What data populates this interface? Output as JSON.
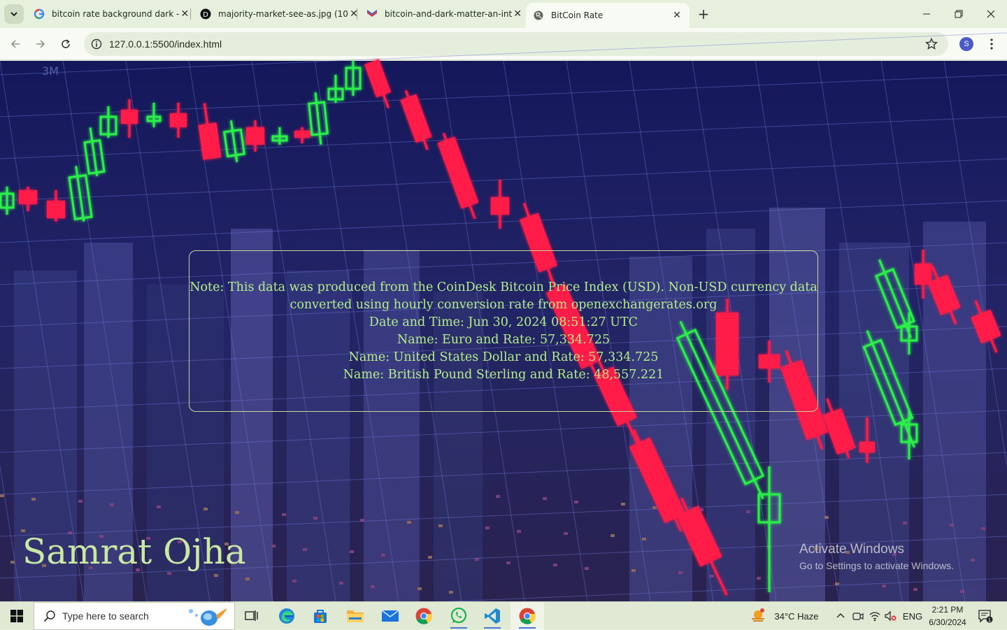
{
  "browser": {
    "tabs": [
      {
        "title": "bitcoin rate background dark - ",
        "favicon": "google-g-icon",
        "active": false
      },
      {
        "title": "majority-market-see-as.jpg (10",
        "favicon": "dark-d-icon",
        "active": false
      },
      {
        "title": "bitcoin-and-dark-matter-an-int",
        "favicon": "site-flag-icon",
        "active": false
      },
      {
        "title": "BitCoin Rate",
        "favicon": "globe-icon",
        "active": true
      }
    ],
    "url": "127.0.0.1:5500/index.html",
    "profile_initial": "S"
  },
  "page": {
    "info_lines": [
      "Note: This data was produced from the CoinDesk Bitcoin Price Index (USD). Non-USD currency data",
      "converted using hourly conversion rate from openexchangerates.org",
      "Date and Time: Jun 30, 2024 08:51:27 UTC",
      "Name: Euro and Rate: 57,334.725",
      "Name: United States Dollar and Rate: 57,334.725",
      "Name: British Pound Sterling and Rate: 48,557.221"
    ],
    "author": "Samrat Ojha",
    "bg_label": "3M"
  },
  "watermark": {
    "title": "Activate Windows",
    "subtitle": "Go to Settings to activate Windows."
  },
  "taskbar": {
    "search_placeholder": "Type here to search",
    "weather": "34°C  Haze",
    "language": "ENG",
    "time": "2:21 PM",
    "date": "6/30/2024",
    "notification_count": "1"
  },
  "colors": {
    "candle_up": "#2cf048",
    "candle_down": "#ff1f4a",
    "bg_top": "#14185a",
    "text_green": "#b3ee8a"
  }
}
